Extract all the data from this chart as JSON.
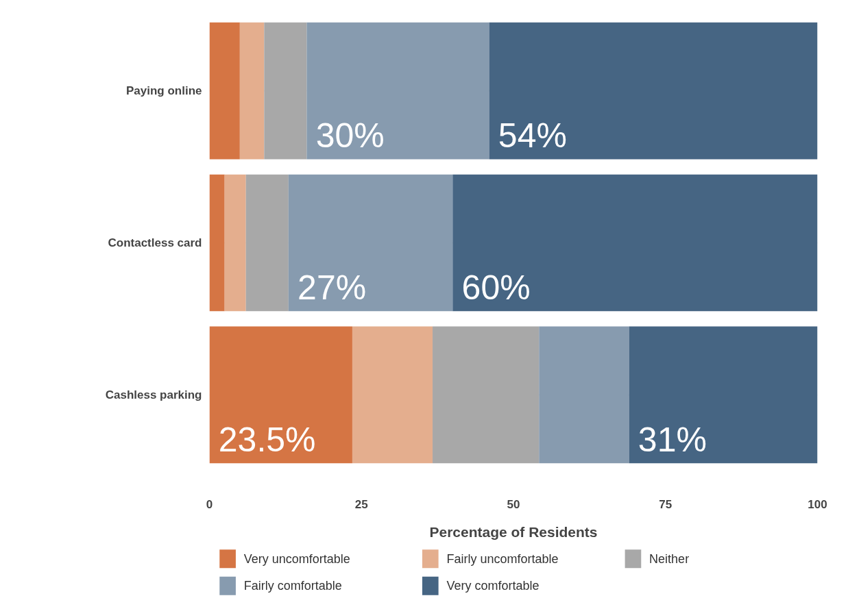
{
  "chart_data": {
    "type": "bar",
    "orientation": "horizontal",
    "stacked": true,
    "categories": [
      "Paying online",
      "Contactless card",
      "Cashless parking"
    ],
    "xlabel": "Percentage of Residents",
    "xlim": [
      0,
      100
    ],
    "xticks": [
      0,
      25,
      50,
      75,
      100
    ],
    "grid": "y",
    "legend": "bottom",
    "series": [
      {
        "name": "Very uncomfortable",
        "color": "#d57544",
        "values": [
          5,
          2.5,
          23.5
        ],
        "value_labels": [
          null,
          null,
          "23.5%"
        ]
      },
      {
        "name": "Fairly uncomfortable",
        "color": "#e4ae8e",
        "values": [
          4,
          3.5,
          13.2
        ],
        "value_labels": [
          null,
          null,
          null
        ]
      },
      {
        "name": "Neither",
        "color": "#a8a8a8",
        "values": [
          7,
          7,
          17.5
        ],
        "value_labels": [
          null,
          null,
          null
        ]
      },
      {
        "name": "Fairly comfortable",
        "color": "#879baf",
        "values": [
          30,
          27,
          14.8
        ],
        "value_labels": [
          "30%",
          "27%",
          null
        ]
      },
      {
        "name": "Very comfortable",
        "color": "#466583",
        "values": [
          54,
          60,
          31
        ],
        "value_labels": [
          "54%",
          "60%",
          "31%"
        ]
      }
    ]
  }
}
